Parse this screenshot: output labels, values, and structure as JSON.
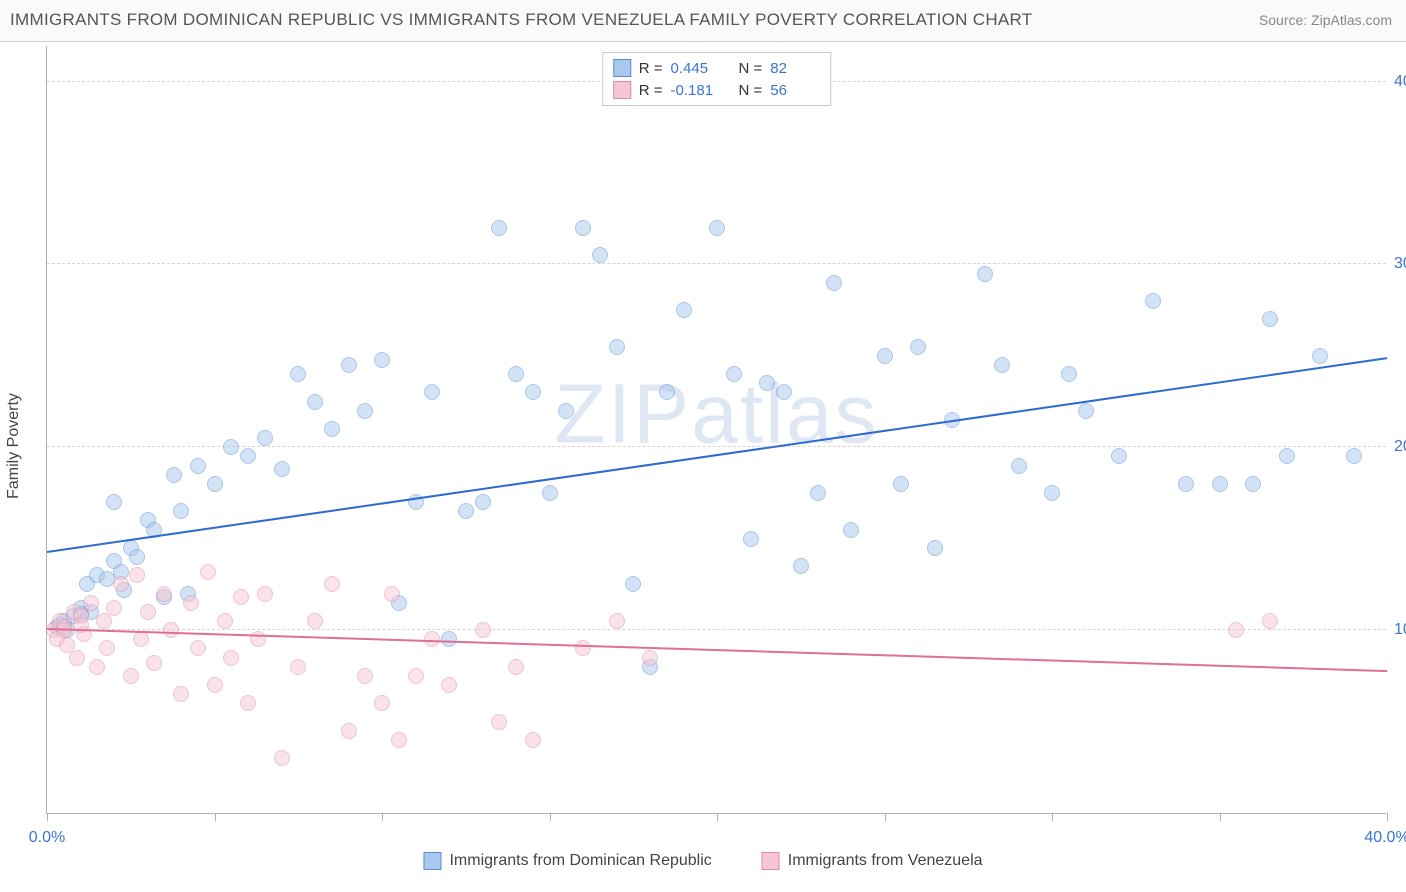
{
  "title": "IMMIGRANTS FROM DOMINICAN REPUBLIC VS IMMIGRANTS FROM VENEZUELA FAMILY POVERTY CORRELATION CHART",
  "source_label": "Source:",
  "source_value": "ZipAtlas.com",
  "ylabel": "Family Poverty",
  "watermark": "ZIPatlas",
  "chart": {
    "type": "scatter",
    "xlim": [
      0,
      40
    ],
    "ylim": [
      0,
      42
    ],
    "xticks": [
      0,
      5,
      10,
      15,
      20,
      25,
      30,
      35,
      40
    ],
    "xtick_labels": {
      "0": "0.0%",
      "40": "40.0%"
    },
    "yticks": [
      10,
      20,
      30,
      40
    ],
    "ytick_labels": {
      "10": "10.0%",
      "20": "20.0%",
      "30": "30.0%",
      "40": "40.0%"
    },
    "background_color": "#ffffff",
    "grid_color": "#d5d5d5",
    "axis_color": "#b0b0b0",
    "tick_label_color": "#3b74d1",
    "marker_radius": 8,
    "marker_opacity": 0.5,
    "series": [
      {
        "name": "Immigrants from Dominican Republic",
        "fill_color": "#a8c8ee",
        "stroke_color": "#5a8fd6",
        "line_color": "#2e6bd0",
        "r": "0.445",
        "n": "82",
        "trend": {
          "x1": 0,
          "y1": 14.2,
          "x2": 40,
          "y2": 24.8
        },
        "points": [
          [
            0.3,
            10.2
          ],
          [
            0.5,
            10.5
          ],
          [
            0.6,
            10.0
          ],
          [
            0.8,
            10.8
          ],
          [
            1.0,
            11.2
          ],
          [
            1.2,
            12.5
          ],
          [
            1.3,
            11.0
          ],
          [
            1.5,
            13.0
          ],
          [
            1.8,
            12.8
          ],
          [
            2.0,
            13.8
          ],
          [
            2.0,
            17.0
          ],
          [
            2.3,
            12.2
          ],
          [
            2.5,
            14.5
          ],
          [
            2.7,
            14.0
          ],
          [
            3.0,
            16.0
          ],
          [
            3.2,
            15.5
          ],
          [
            3.5,
            11.8
          ],
          [
            3.8,
            18.5
          ],
          [
            4.0,
            16.5
          ],
          [
            4.2,
            12.0
          ],
          [
            4.5,
            19.0
          ],
          [
            5.0,
            18.0
          ],
          [
            5.5,
            20.0
          ],
          [
            6.0,
            19.5
          ],
          [
            6.5,
            20.5
          ],
          [
            7.0,
            18.8
          ],
          [
            7.5,
            24.0
          ],
          [
            8.0,
            22.5
          ],
          [
            8.5,
            21.0
          ],
          [
            9.0,
            24.5
          ],
          [
            9.5,
            22.0
          ],
          [
            10.0,
            24.8
          ],
          [
            10.5,
            11.5
          ],
          [
            11.0,
            17.0
          ],
          [
            11.5,
            23.0
          ],
          [
            12.0,
            9.5
          ],
          [
            12.5,
            16.5
          ],
          [
            13.0,
            17.0
          ],
          [
            13.5,
            32.0
          ],
          [
            14.0,
            24.0
          ],
          [
            14.5,
            23.0
          ],
          [
            15.0,
            17.5
          ],
          [
            15.5,
            22.0
          ],
          [
            16.0,
            32.0
          ],
          [
            16.5,
            30.5
          ],
          [
            17.0,
            25.5
          ],
          [
            17.5,
            12.5
          ],
          [
            18.0,
            8.0
          ],
          [
            18.5,
            23.0
          ],
          [
            19.0,
            27.5
          ],
          [
            20.0,
            32.0
          ],
          [
            20.5,
            24.0
          ],
          [
            21.0,
            15.0
          ],
          [
            21.5,
            23.5
          ],
          [
            22.0,
            23.0
          ],
          [
            22.5,
            13.5
          ],
          [
            23.0,
            17.5
          ],
          [
            23.5,
            29.0
          ],
          [
            24.0,
            15.5
          ],
          [
            25.0,
            25.0
          ],
          [
            25.5,
            18.0
          ],
          [
            26.0,
            25.5
          ],
          [
            26.5,
            14.5
          ],
          [
            27.0,
            21.5
          ],
          [
            28.0,
            29.5
          ],
          [
            28.5,
            24.5
          ],
          [
            29.0,
            19.0
          ],
          [
            30.0,
            17.5
          ],
          [
            30.5,
            24.0
          ],
          [
            31.0,
            22.0
          ],
          [
            32.0,
            19.5
          ],
          [
            33.0,
            28.0
          ],
          [
            34.0,
            18.0
          ],
          [
            35.0,
            18.0
          ],
          [
            36.0,
            18.0
          ],
          [
            36.5,
            27.0
          ],
          [
            37.0,
            19.5
          ],
          [
            38.0,
            25.0
          ],
          [
            39.0,
            19.5
          ],
          [
            0.4,
            10.3
          ],
          [
            1.0,
            10.9
          ],
          [
            2.2,
            13.2
          ]
        ]
      },
      {
        "name": "Immigrants from Venezuela",
        "fill_color": "#f5c6d4",
        "stroke_color": "#e08aa5",
        "line_color": "#e06f94",
        "r": "-0.181",
        "n": "56",
        "trend": {
          "x1": 0,
          "y1": 10.0,
          "x2": 40,
          "y2": 7.7
        },
        "points": [
          [
            0.2,
            10.0
          ],
          [
            0.3,
            9.5
          ],
          [
            0.4,
            10.5
          ],
          [
            0.5,
            10.2
          ],
          [
            0.6,
            9.2
          ],
          [
            0.8,
            11.0
          ],
          [
            0.9,
            8.5
          ],
          [
            1.0,
            10.8
          ],
          [
            1.1,
            9.8
          ],
          [
            1.3,
            11.5
          ],
          [
            1.5,
            8.0
          ],
          [
            1.7,
            10.5
          ],
          [
            1.8,
            9.0
          ],
          [
            2.0,
            11.2
          ],
          [
            2.2,
            12.5
          ],
          [
            2.5,
            7.5
          ],
          [
            2.7,
            13.0
          ],
          [
            2.8,
            9.5
          ],
          [
            3.0,
            11.0
          ],
          [
            3.2,
            8.2
          ],
          [
            3.5,
            12.0
          ],
          [
            3.7,
            10.0
          ],
          [
            4.0,
            6.5
          ],
          [
            4.3,
            11.5
          ],
          [
            4.5,
            9.0
          ],
          [
            4.8,
            13.2
          ],
          [
            5.0,
            7.0
          ],
          [
            5.3,
            10.5
          ],
          [
            5.5,
            8.5
          ],
          [
            5.8,
            11.8
          ],
          [
            6.0,
            6.0
          ],
          [
            6.3,
            9.5
          ],
          [
            6.5,
            12.0
          ],
          [
            7.0,
            3.0
          ],
          [
            7.5,
            8.0
          ],
          [
            8.0,
            10.5
          ],
          [
            8.5,
            12.5
          ],
          [
            9.0,
            4.5
          ],
          [
            9.5,
            7.5
          ],
          [
            10.0,
            6.0
          ],
          [
            10.3,
            12.0
          ],
          [
            10.5,
            4.0
          ],
          [
            11.0,
            7.5
          ],
          [
            11.5,
            9.5
          ],
          [
            12.0,
            7.0
          ],
          [
            13.0,
            10.0
          ],
          [
            13.5,
            5.0
          ],
          [
            14.0,
            8.0
          ],
          [
            14.5,
            4.0
          ],
          [
            16.0,
            9.0
          ],
          [
            17.0,
            10.5
          ],
          [
            18.0,
            8.5
          ],
          [
            35.5,
            10.0
          ],
          [
            36.5,
            10.5
          ],
          [
            0.5,
            10.0
          ],
          [
            1.0,
            10.3
          ]
        ]
      }
    ]
  },
  "legend_top": {
    "r_label": "R =",
    "n_label": "N ="
  }
}
